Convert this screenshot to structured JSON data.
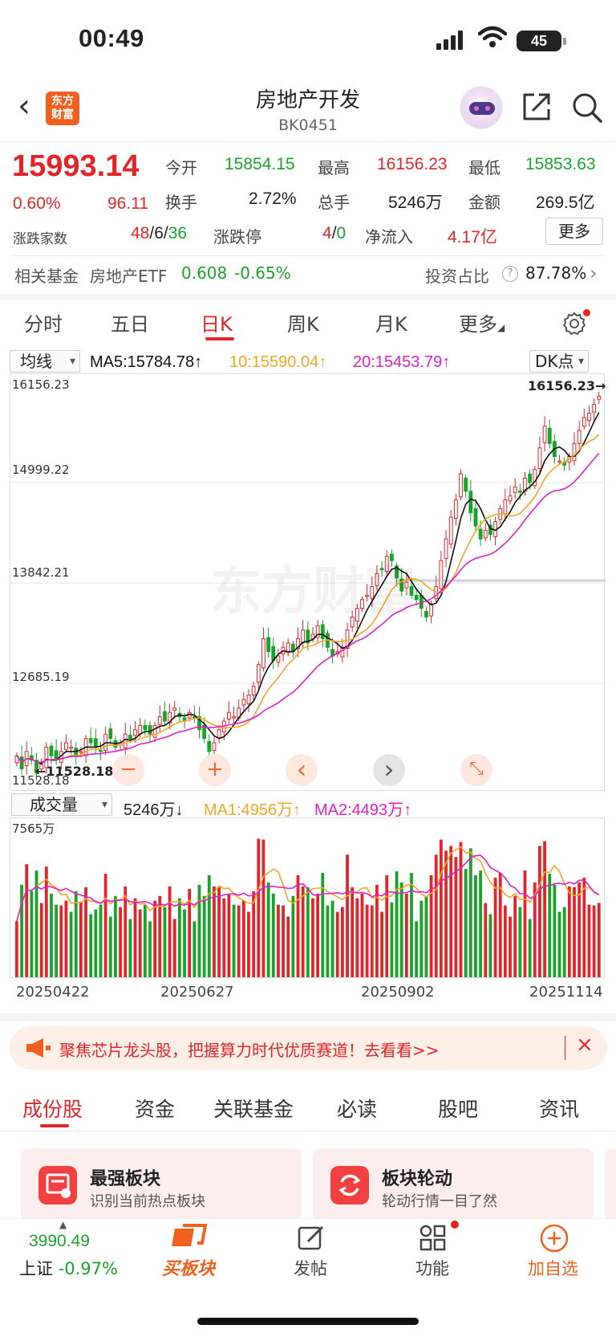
{
  "status_bar": {
    "time": "00:49",
    "battery": "45"
  },
  "nav": {
    "logo_line1": "东方",
    "logo_line2": "财富",
    "title": "房地产开发",
    "code": "BK0451"
  },
  "quote": {
    "price": "15993.14",
    "change_pct": "0.60%",
    "change_amt": "96.11",
    "open_label": "今开",
    "open": "15854.15",
    "high_label": "最高",
    "high": "16156.23",
    "low_label": "最低",
    "low": "15853.63",
    "turnover_label": "换手",
    "turnover": "2.72%",
    "volume_label": "总手",
    "volume": "5246万",
    "amount_label": "金额",
    "amount": "269.5亿",
    "breadth_label": "涨跌家数",
    "up_count": "48",
    "flat_count": "6",
    "down_count": "36",
    "limit_label": "涨跌停",
    "limit_up": "4",
    "limit_down": "0",
    "netflow_label": "净流入",
    "netflow": "4.17亿",
    "more_button": "更多"
  },
  "related": {
    "label": "相关基金",
    "etf_name": "房地产ETF",
    "etf_price": "0.608",
    "etf_change": "-0.65%",
    "weight_label": "投资占比",
    "weight": "87.78%"
  },
  "chart_tabs": [
    {
      "label": "分时"
    },
    {
      "label": "五日"
    },
    {
      "label": "日K",
      "active": true
    },
    {
      "label": "周K"
    },
    {
      "label": "月K"
    },
    {
      "label": "更多"
    }
  ],
  "ma_legend": {
    "selector": "均线",
    "ma5": "MA5:15784.78",
    "ma10": "10:15590.04",
    "ma20": "20:15453.79",
    "dk_button": "DK点"
  },
  "price_axis": {
    "labels": [
      "16156.23",
      "14999.22",
      "13842.21",
      "12685.19",
      "11528.18"
    ],
    "high_marker": "16156.23",
    "low_marker": "11528.18"
  },
  "watermark": "东方财富",
  "volume_legend": {
    "selector": "成交量",
    "vol": "5246万",
    "ma1": "MA1:4956万",
    "ma2": "MA2:4493万",
    "max_label": "7565万"
  },
  "date_axis": [
    "20250422",
    "20250627",
    "20250902",
    "20251114"
  ],
  "colors": {
    "up": "#e0262b",
    "down": "#1aa32b",
    "ma5": "#111111",
    "ma10": "#f5a623",
    "ma20": "#e020c8"
  },
  "chart_data": {
    "type": "candlestick",
    "ylim": [
      11528.18,
      16156.23
    ],
    "ylabels": [
      "16156.23",
      "14999.22",
      "13842.21",
      "12685.19",
      "11528.18"
    ],
    "xlabels": [
      "20250422",
      "20250627",
      "20250902",
      "20251114"
    ],
    "closes": [
      11850,
      11700,
      11900,
      11800,
      11650,
      11750,
      11950,
      11850,
      11800,
      11900,
      12000,
      11950,
      11850,
      11900,
      12050,
      12000,
      11950,
      11900,
      12100,
      12050,
      11950,
      12000,
      12100,
      12050,
      12150,
      12200,
      12150,
      12100,
      12200,
      12300,
      12250,
      12350,
      12400,
      12300,
      12250,
      12350,
      12300,
      12150,
      12050,
      11900,
      12000,
      12150,
      12250,
      12350,
      12300,
      12400,
      12500,
      12550,
      12650,
      12900,
      13200,
      13050,
      12950,
      13000,
      13100,
      13150,
      13050,
      13200,
      13300,
      13150,
      13250,
      13350,
      13200,
      13100,
      13000,
      13050,
      13100,
      13300,
      13450,
      13550,
      13650,
      13700,
      13800,
      13950,
      14000,
      14150,
      14100,
      13900,
      13750,
      13850,
      13700,
      13650,
      13550,
      13450,
      13600,
      13800,
      14100,
      14350,
      14600,
      14800,
      15100,
      14900,
      14650,
      14500,
      14350,
      14450,
      14400,
      14550,
      14700,
      14800,
      14850,
      14950,
      14900,
      15050,
      15000,
      15150,
      15400,
      15650,
      15450,
      15300,
      15250,
      15200,
      15300,
      15450,
      15600,
      15750,
      15800,
      15900,
      15993
    ],
    "volume_max": "7565万"
  },
  "controls": {
    "zoom_out": "−",
    "zoom_in": "+",
    "prev": "‹",
    "next": "›",
    "expand": "⤡"
  },
  "banner": {
    "text": "聚焦芯片龙头股，把握算力时代优质赛道！去看看>>"
  },
  "bottom_tabs": [
    {
      "label": "成份股",
      "active": true
    },
    {
      "label": "资金"
    },
    {
      "label": "关联基金"
    },
    {
      "label": "必读"
    },
    {
      "label": "股吧"
    },
    {
      "label": "资讯"
    }
  ],
  "cards": [
    {
      "title": "最强板块",
      "subtitle": "识别当前热点板块"
    },
    {
      "title": "板块轮动",
      "subtitle": "轮动行情一目了然"
    }
  ],
  "index_ticker": {
    "value": "3990.49",
    "name": "上证",
    "change": "-0.97%"
  },
  "bottom_nav": [
    {
      "label": "买板块"
    },
    {
      "label": "发帖"
    },
    {
      "label": "功能"
    },
    {
      "label": "加自选"
    }
  ]
}
